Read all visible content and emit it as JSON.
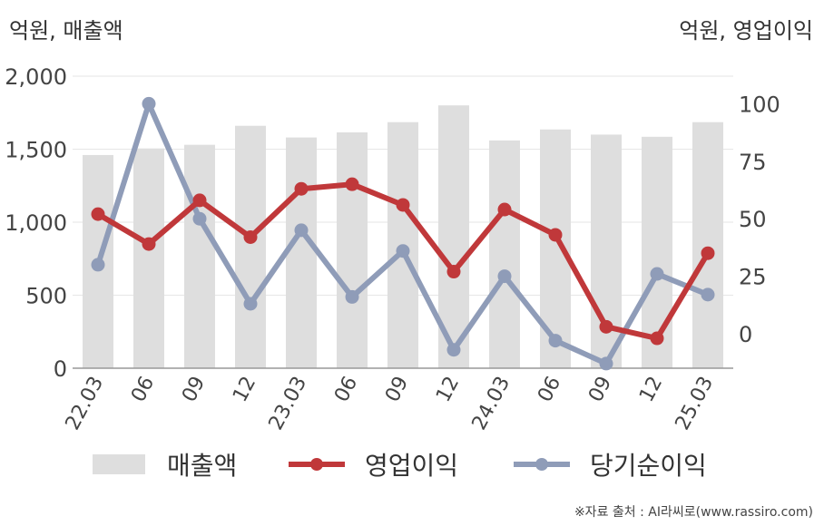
{
  "units": {
    "left": "억원, 매출액",
    "right": "억원, 영업이익"
  },
  "source": "※자료 출처 : AI라씨로(www.rassiro.com)",
  "legend": {
    "bar": "매출액",
    "line1": "영업이익",
    "line2": "당기순이익"
  },
  "colors": {
    "bar": "#dedede",
    "operating": "#c0383a",
    "net": "#8f9cb8",
    "axis": "#999999",
    "grid": "#e6e6e6"
  },
  "chart_data": {
    "type": "bar+line",
    "categories": [
      "22.03",
      "06",
      "09",
      "12",
      "23.03",
      "06",
      "09",
      "12",
      "24.03",
      "06",
      "09",
      "12",
      "25.03"
    ],
    "left_axis": {
      "label": "억원, 매출액",
      "ylim": [
        0,
        2000
      ],
      "ticks": [
        0,
        500,
        1000,
        1500,
        2000
      ],
      "tick_labels": [
        "0",
        "500",
        "1,000",
        "1,500",
        "2,000"
      ]
    },
    "right_axis": {
      "label": "억원, 영업이익",
      "ylim": [
        -15,
        112
      ],
      "ticks": [
        0,
        25,
        50,
        75,
        100
      ],
      "tick_labels": [
        "0",
        "25",
        "50",
        "75",
        "100"
      ]
    },
    "series": [
      {
        "name": "매출액",
        "type": "bar",
        "axis": "left",
        "values": [
          1460,
          1505,
          1530,
          1660,
          1580,
          1615,
          1685,
          1800,
          1560,
          1635,
          1600,
          1585,
          1685
        ]
      },
      {
        "name": "영업이익",
        "type": "line",
        "axis": "right",
        "values": [
          52,
          39,
          58,
          42,
          63,
          65,
          56,
          27,
          54,
          43,
          3,
          -2,
          35
        ]
      },
      {
        "name": "당기순이익",
        "type": "line",
        "axis": "right",
        "values": [
          30,
          100,
          50,
          13,
          45,
          16,
          36,
          -7,
          25,
          -3,
          -13,
          26,
          17
        ]
      }
    ],
    "grid": true,
    "legend_position": "bottom"
  }
}
